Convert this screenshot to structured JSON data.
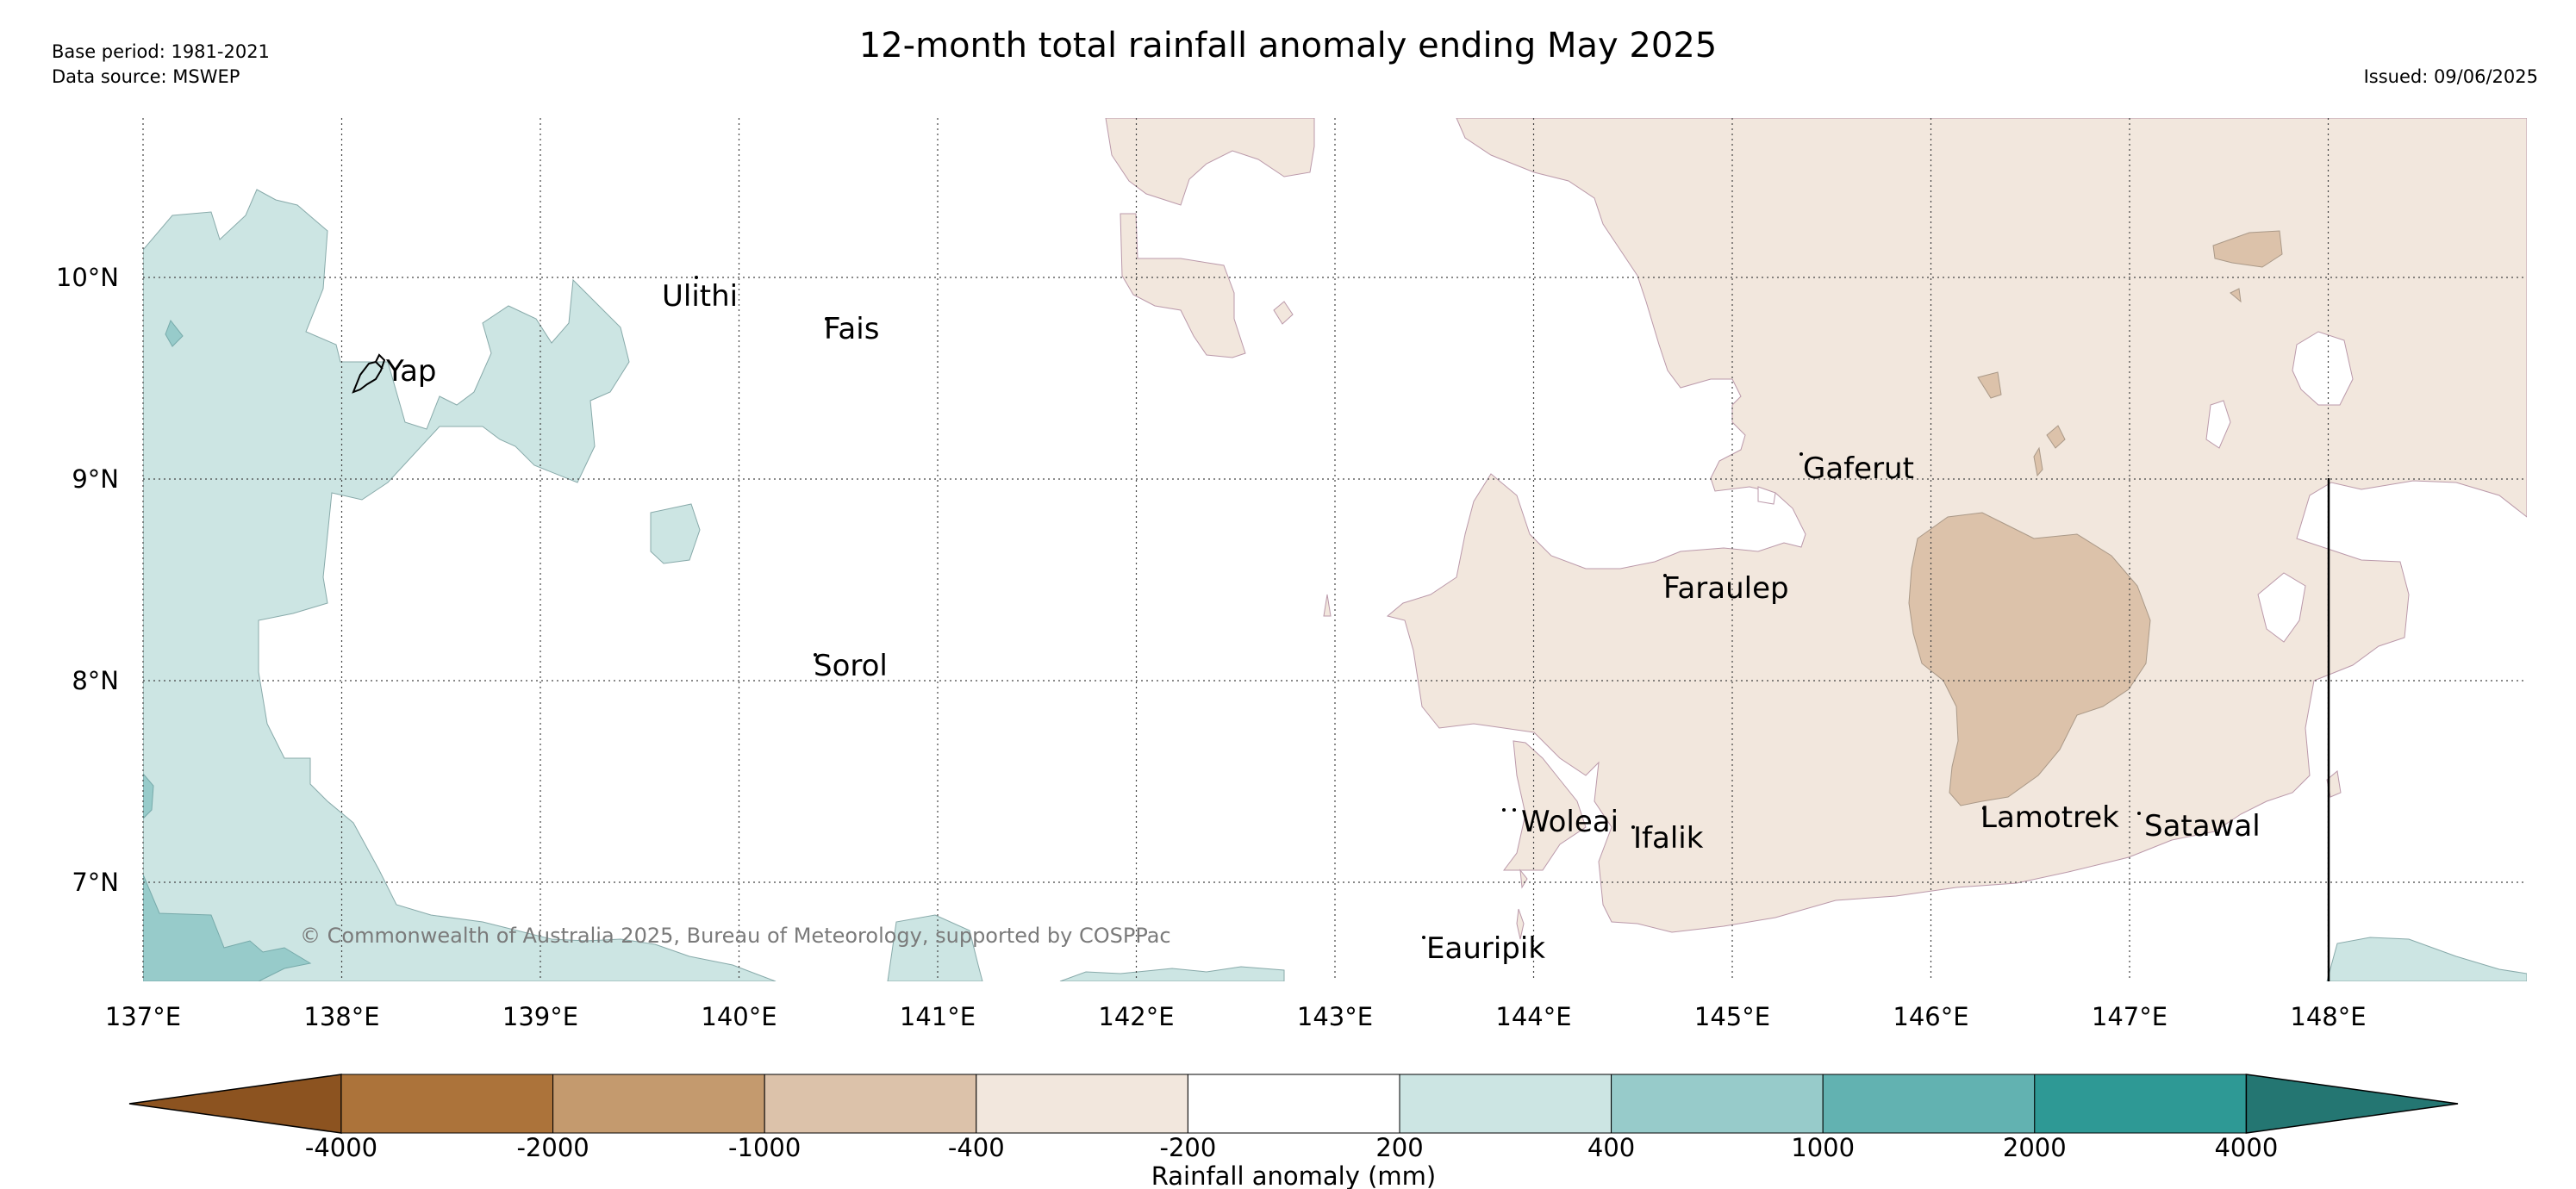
{
  "header": {
    "base_period": "Base period: 1981-2021",
    "data_source": "Data source: MSWEP",
    "title": "12-month total rainfall anomaly ending May 2025",
    "issued": "Issued: 09/06/2025"
  },
  "map": {
    "lat_labels": [
      "10°N",
      "9°N",
      "8°N",
      "7°N"
    ],
    "lon_labels": [
      "137°E",
      "138°E",
      "139°E",
      "140°E",
      "141°E",
      "142°E",
      "143°E",
      "144°E",
      "145°E",
      "146°E",
      "147°E",
      "148°E"
    ],
    "places": [
      "Yap",
      "Ulithi",
      "Fais",
      "Sorol",
      "Gaferut",
      "Faraulep",
      "Woleai",
      "Ifalik",
      "Lamotrek",
      "Satawal",
      "Eauripik"
    ],
    "copyright": "© Commonwealth of Australia 2025, Bureau of Meteorology, supported by COSPPac"
  },
  "colorbar": {
    "label": "Rainfall anomaly (mm)",
    "ticks": [
      "-4000",
      "-2000",
      "-1000",
      "-400",
      "-200",
      "200",
      "400",
      "1000",
      "2000",
      "4000"
    ],
    "colors": {
      "extend_low": "#8c5320",
      "c1": "#ac733a",
      "c2": "#c49a6e",
      "c3": "#dcc2aa",
      "c4": "#f2e7dd",
      "c5": "#ffffff",
      "c6": "#cce5e3",
      "c7": "#97cbca",
      "c8": "#62b2b1",
      "c9": "#2e9995",
      "extend_high": "#247672"
    }
  }
}
